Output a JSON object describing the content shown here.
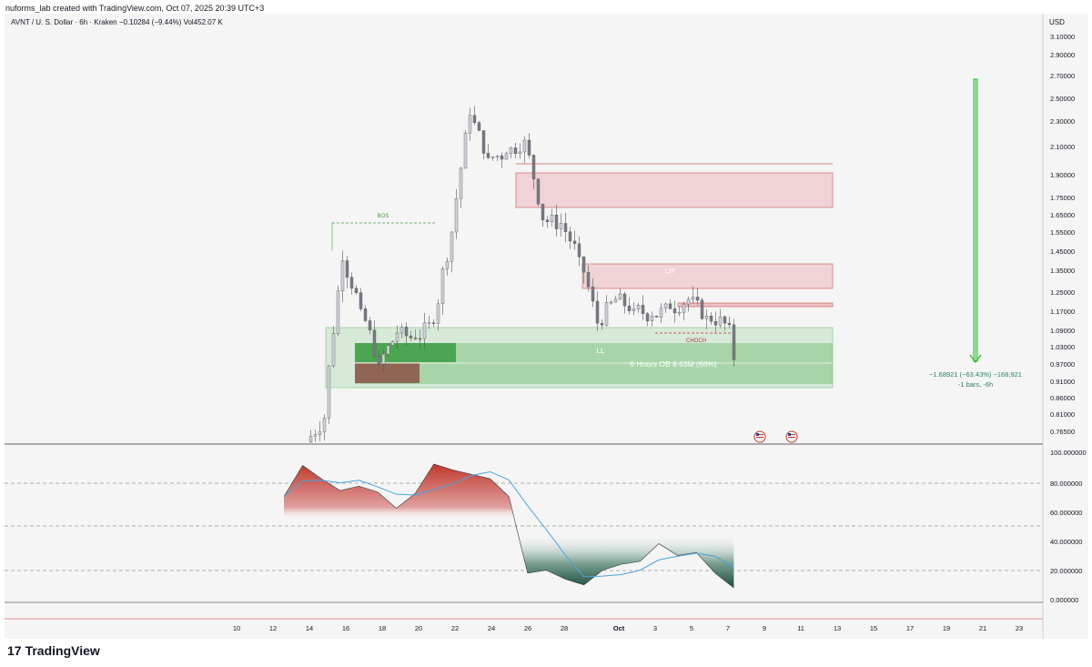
{
  "header": {
    "caption": "nuforms_lab created with TradingView.com, Oct 07, 2025 20:39 UTC+3",
    "symbol_line": "AVNT / U. S. Dollar · 6h · Kraken  −0.10284 (−9.44%)  Vol452.07 K",
    "currency": "USD"
  },
  "brand": {
    "name": "TradingView",
    "logo_text": "17"
  },
  "colors": {
    "bull": "#d1d4dc",
    "bear": "#787b86",
    "supply_zone": "#e8a0a8",
    "demand_zone": "#4caf50",
    "rsi_high": "#c0392b",
    "rsi_low": "#1b4d3e",
    "rsi_ma": "#4aa3df",
    "measure": "#2db82d"
  },
  "chart_data": [
    {
      "type": "candlestick",
      "title": "AVNT / U. S. Dollar · 6h · Kraken",
      "y_axis_labels": [
        "3.10000",
        "2.90000",
        "2.70000",
        "2.50000",
        "2.30000",
        "2.10000",
        "1.90000",
        "1.75000",
        "1.65000",
        "1.55000",
        "1.45000",
        "1.35000",
        "1.25000",
        "1.17000",
        "1.09000",
        "1.03000",
        "0.97000",
        "0.91000",
        "0.86000",
        "0.81000",
        "0.76500"
      ],
      "x_axis_labels": [
        "10",
        "12",
        "14",
        "16",
        "18",
        "20",
        "22",
        "24",
        "26",
        "28",
        "Oct",
        "3",
        "5",
        "7",
        "9",
        "11",
        "13",
        "15",
        "17",
        "19",
        "21",
        "23"
      ],
      "close_points": [
        [
          "Sep 14",
          0.8
        ],
        [
          "Sep 15",
          1.4
        ],
        [
          "Sep 16",
          1.18
        ],
        [
          "Sep 17",
          0.97
        ],
        [
          "Sep 18",
          1.08
        ],
        [
          "Sep 19",
          1.06
        ],
        [
          "Sep 20",
          1.12
        ],
        [
          "Sep 21",
          1.55
        ],
        [
          "Sep 22",
          2.35
        ],
        [
          "Sep 23",
          2.02
        ],
        [
          "Sep 24",
          2.05
        ],
        [
          "Sep 25",
          2.15
        ],
        [
          "Sep 26",
          1.62
        ],
        [
          "Sep 27",
          1.6
        ],
        [
          "Sep 28",
          1.42
        ],
        [
          "Sep 29",
          1.12
        ],
        [
          "Sep 30",
          1.22
        ],
        [
          "Oct 1",
          1.18
        ],
        [
          "Oct 2",
          1.15
        ],
        [
          "Oct 3",
          1.18
        ],
        [
          "Oct 4",
          1.22
        ],
        [
          "Oct 5",
          1.15
        ],
        [
          "Oct 6",
          1.12
        ],
        [
          "Oct 7",
          0.985
        ]
      ],
      "annotations": {
        "bos": "BOS",
        "choch": "CHOCH",
        "lh": "LH",
        "ll": "LL",
        "ob_label": "6 Hours OB 8.63M (66%)",
        "measure_line1": "−1.68921 (−63.43%) −168,921",
        "measure_line2": "-1 bars, -6h"
      }
    },
    {
      "type": "area",
      "title": "",
      "y_axis_labels": [
        "100.000000",
        "80.000000",
        "60.000000",
        "40.000000",
        "20.000000",
        "0.000000"
      ],
      "series_points": [
        [
          "Sep 13",
          70
        ],
        [
          "Sep 14",
          91
        ],
        [
          "Sep 15",
          82
        ],
        [
          "Sep 16",
          74
        ],
        [
          "Sep 17",
          77
        ],
        [
          "Sep 18",
          73
        ],
        [
          "Sep 19",
          62
        ],
        [
          "Sep 20",
          72
        ],
        [
          "Sep 21",
          92
        ],
        [
          "Sep 22",
          88
        ],
        [
          "Sep 23",
          85
        ],
        [
          "Sep 24",
          82
        ],
        [
          "Sep 25",
          70
        ],
        [
          "Sep 26",
          18
        ],
        [
          "Sep 27",
          20
        ],
        [
          "Sep 28",
          14
        ],
        [
          "Sep 29",
          10
        ],
        [
          "Sep 30",
          20
        ],
        [
          "Oct 1",
          24
        ],
        [
          "Oct 2",
          26
        ],
        [
          "Oct 3",
          38
        ],
        [
          "Oct 4",
          30
        ],
        [
          "Oct 5",
          32
        ],
        [
          "Oct 6",
          18
        ],
        [
          "Oct 7",
          8
        ]
      ]
    }
  ]
}
